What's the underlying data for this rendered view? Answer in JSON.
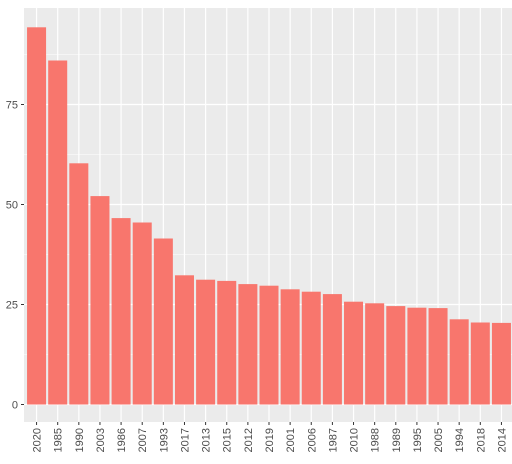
{
  "chart_data": {
    "type": "bar",
    "categories": [
      "2020",
      "1985",
      "1990",
      "2003",
      "1986",
      "2007",
      "1993",
      "2017",
      "2013",
      "2015",
      "2012",
      "2019",
      "2001",
      "2006",
      "1987",
      "2010",
      "1988",
      "1989",
      "1995",
      "2005",
      "1994",
      "2018",
      "2014"
    ],
    "values": [
      94.3,
      86,
      60.3,
      52.1,
      46.6,
      45.5,
      41.5,
      32.3,
      31.2,
      30.9,
      30.1,
      29.7,
      28.8,
      28.2,
      27.6,
      25.7,
      25.3,
      24.6,
      24.2,
      24.1,
      21.3,
      20.5,
      20.4
    ],
    "title": "",
    "xlabel": "",
    "ylabel": "",
    "ylim": [
      0,
      100
    ],
    "yticks": [
      0,
      25,
      50,
      75
    ],
    "grid": true,
    "bar_color": "#f8766d",
    "panel_color": "#ebebeb",
    "grid_color": "#ffffff"
  }
}
